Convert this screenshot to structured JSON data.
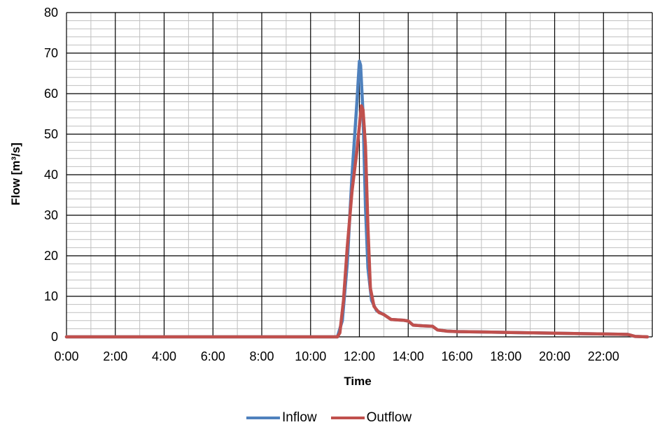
{
  "chart_data": {
    "type": "line",
    "xlabel": "Time",
    "ylabel": "Flow [m³/s]",
    "ylim": [
      0,
      80
    ],
    "y_ticks": [
      0,
      10,
      20,
      30,
      40,
      50,
      60,
      70,
      80
    ],
    "x_unit": "hours",
    "xlim": [
      0,
      24
    ],
    "x_ticks": [
      "0:00",
      "2:00",
      "4:00",
      "6:00",
      "8:00",
      "10:00",
      "12:00",
      "14:00",
      "16:00",
      "18:00",
      "20:00",
      "22:00"
    ],
    "grid": true,
    "legend_position": "bottom",
    "series": [
      {
        "name": "Inflow",
        "color": "#4f81bd",
        "points": [
          [
            0,
            0
          ],
          [
            11.1,
            0
          ],
          [
            11.3,
            4
          ],
          [
            11.5,
            18
          ],
          [
            11.7,
            40
          ],
          [
            11.9,
            58
          ],
          [
            12.0,
            68
          ],
          [
            12.05,
            67
          ],
          [
            12.15,
            55
          ],
          [
            12.25,
            32
          ],
          [
            12.35,
            17
          ],
          [
            12.5,
            9
          ],
          [
            12.7,
            6.5
          ],
          [
            13.0,
            5.5
          ],
          [
            13.3,
            4.3
          ],
          [
            13.8,
            4.1
          ],
          [
            14.0,
            3.9
          ],
          [
            14.2,
            2.9
          ],
          [
            14.6,
            2.7
          ],
          [
            15.0,
            2.6
          ],
          [
            15.2,
            1.7
          ],
          [
            15.6,
            1.4
          ],
          [
            16.0,
            1.3
          ],
          [
            17.0,
            1.2
          ],
          [
            18.0,
            1.1
          ],
          [
            19.0,
            1.0
          ],
          [
            20.0,
            0.9
          ],
          [
            21.0,
            0.8
          ],
          [
            22.0,
            0.7
          ],
          [
            23.0,
            0.6
          ],
          [
            23.3,
            0.1
          ],
          [
            23.8,
            0
          ]
        ]
      },
      {
        "name": "Outflow",
        "color": "#c0504d",
        "points": [
          [
            0,
            0
          ],
          [
            11.1,
            0
          ],
          [
            11.2,
            1
          ],
          [
            11.35,
            9
          ],
          [
            11.5,
            22
          ],
          [
            11.7,
            36
          ],
          [
            11.9,
            46
          ],
          [
            12.0,
            52
          ],
          [
            12.08,
            57
          ],
          [
            12.15,
            56
          ],
          [
            12.25,
            47
          ],
          [
            12.35,
            27
          ],
          [
            12.45,
            12
          ],
          [
            12.6,
            7.5
          ],
          [
            12.8,
            6.0
          ],
          [
            13.0,
            5.5
          ],
          [
            13.3,
            4.3
          ],
          [
            13.8,
            4.1
          ],
          [
            14.0,
            3.9
          ],
          [
            14.2,
            2.9
          ],
          [
            14.6,
            2.7
          ],
          [
            15.0,
            2.6
          ],
          [
            15.2,
            1.7
          ],
          [
            15.6,
            1.4
          ],
          [
            16.0,
            1.3
          ],
          [
            17.0,
            1.2
          ],
          [
            18.0,
            1.1
          ],
          [
            19.0,
            1.0
          ],
          [
            20.0,
            0.9
          ],
          [
            21.0,
            0.8
          ],
          [
            22.0,
            0.7
          ],
          [
            23.0,
            0.6
          ],
          [
            23.3,
            0.1
          ],
          [
            23.8,
            0
          ]
        ]
      }
    ]
  }
}
